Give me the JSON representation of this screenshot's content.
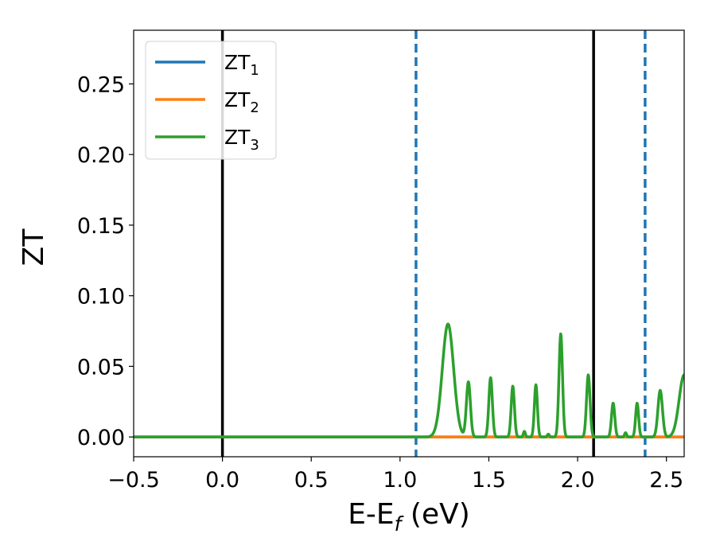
{
  "chart_data": {
    "type": "line",
    "xlabel_main": "E-E",
    "xlabel_sub": "f",
    "xlabel_unit": " (eV)",
    "ylabel": "ZT",
    "xlim": [
      -0.5,
      2.6
    ],
    "ylim": [
      -0.014,
      0.288
    ],
    "xticks": [
      -0.5,
      0.0,
      0.5,
      1.0,
      1.5,
      2.0,
      2.5
    ],
    "xtick_labels": [
      "−0.5",
      "0.0",
      "0.5",
      "1.0",
      "1.5",
      "2.0",
      "2.5"
    ],
    "yticks": [
      0.0,
      0.05,
      0.1,
      0.15,
      0.2,
      0.25
    ],
    "ytick_labels": [
      "0.00",
      "0.05",
      "0.10",
      "0.15",
      "0.20",
      "0.25"
    ],
    "grid": false,
    "legend_position": "top-left",
    "vlines": [
      {
        "x": 0.0,
        "style": "solid",
        "color": "#000000"
      },
      {
        "x": 2.09,
        "style": "solid",
        "color": "#000000"
      },
      {
        "x": 1.09,
        "style": "dashed",
        "color": "#1f77b4"
      },
      {
        "x": 2.38,
        "style": "dashed",
        "color": "#1f77b4"
      }
    ],
    "series": [
      {
        "name_main": "ZT",
        "name_sub": "1",
        "color": "#1f77b4",
        "x": [
          -0.5,
          1.0,
          1.09,
          2.0,
          2.5,
          2.6
        ],
        "y": [
          0.0,
          0.0,
          0.0,
          0.0,
          0.0,
          0.0
        ]
      },
      {
        "name_main": "ZT",
        "name_sub": "2",
        "color": "#ff7f0e",
        "x": [
          -0.5,
          1.0,
          2.6
        ],
        "y": [
          0.0,
          0.0,
          0.0
        ]
      },
      {
        "name_main": "ZT",
        "name_sub": "3",
        "color": "#2ca02c",
        "peaks": [
          {
            "x": 1.27,
            "h": 0.08,
            "w": 0.045
          },
          {
            "x": 1.385,
            "h": 0.039,
            "w": 0.016
          },
          {
            "x": 1.51,
            "h": 0.042,
            "w": 0.014
          },
          {
            "x": 1.635,
            "h": 0.036,
            "w": 0.013
          },
          {
            "x": 1.7,
            "h": 0.004,
            "w": 0.008
          },
          {
            "x": 1.765,
            "h": 0.037,
            "w": 0.012
          },
          {
            "x": 1.835,
            "h": 0.002,
            "w": 0.008
          },
          {
            "x": 1.905,
            "h": 0.073,
            "w": 0.014
          },
          {
            "x": 2.06,
            "h": 0.044,
            "w": 0.014
          },
          {
            "x": 2.2,
            "h": 0.024,
            "w": 0.013
          },
          {
            "x": 2.27,
            "h": 0.003,
            "w": 0.008
          },
          {
            "x": 2.335,
            "h": 0.024,
            "w": 0.012
          },
          {
            "x": 2.465,
            "h": 0.033,
            "w": 0.018
          },
          {
            "x": 2.6,
            "h": 0.044,
            "w": 0.04
          }
        ]
      }
    ]
  }
}
